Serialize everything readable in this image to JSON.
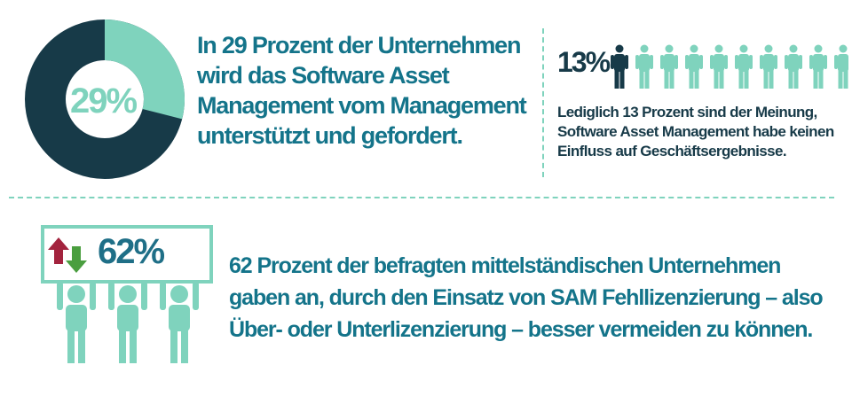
{
  "donut": {
    "percent_label": "29%",
    "value_fraction": 0.29,
    "colors": {
      "highlight": "#7fd3bd",
      "rest": "#173a48"
    }
  },
  "statement_1": "In 29 Prozent der Unternehmen wird das Software Asset Management vom Management unterstützt und gefordert.",
  "people_stat": {
    "percent_label": "13%",
    "highlighted_count": 1,
    "total_count": 10,
    "colors": {
      "highlight": "#173a48",
      "rest": "#7fd3bd"
    }
  },
  "statement_2": "Lediglich 13 Prozent sind der Meinung, Software Asset Management habe keinen Einfluss auf Geschäftsergebnisse.",
  "sign": {
    "percent_label": "62%",
    "icons": [
      "arrow-up-icon",
      "arrow-down-icon"
    ],
    "colors": {
      "up": "#a3233e",
      "down": "#4a9e3f",
      "figures": "#7fd3bd"
    }
  },
  "statement_3": "62 Prozent der befragten mittelständischen Unternehmen gaben an, durch den Einsatz von SAM Fehllizenzierung – also Über- oder Unterlizenzierung – besser vermeiden zu können."
}
